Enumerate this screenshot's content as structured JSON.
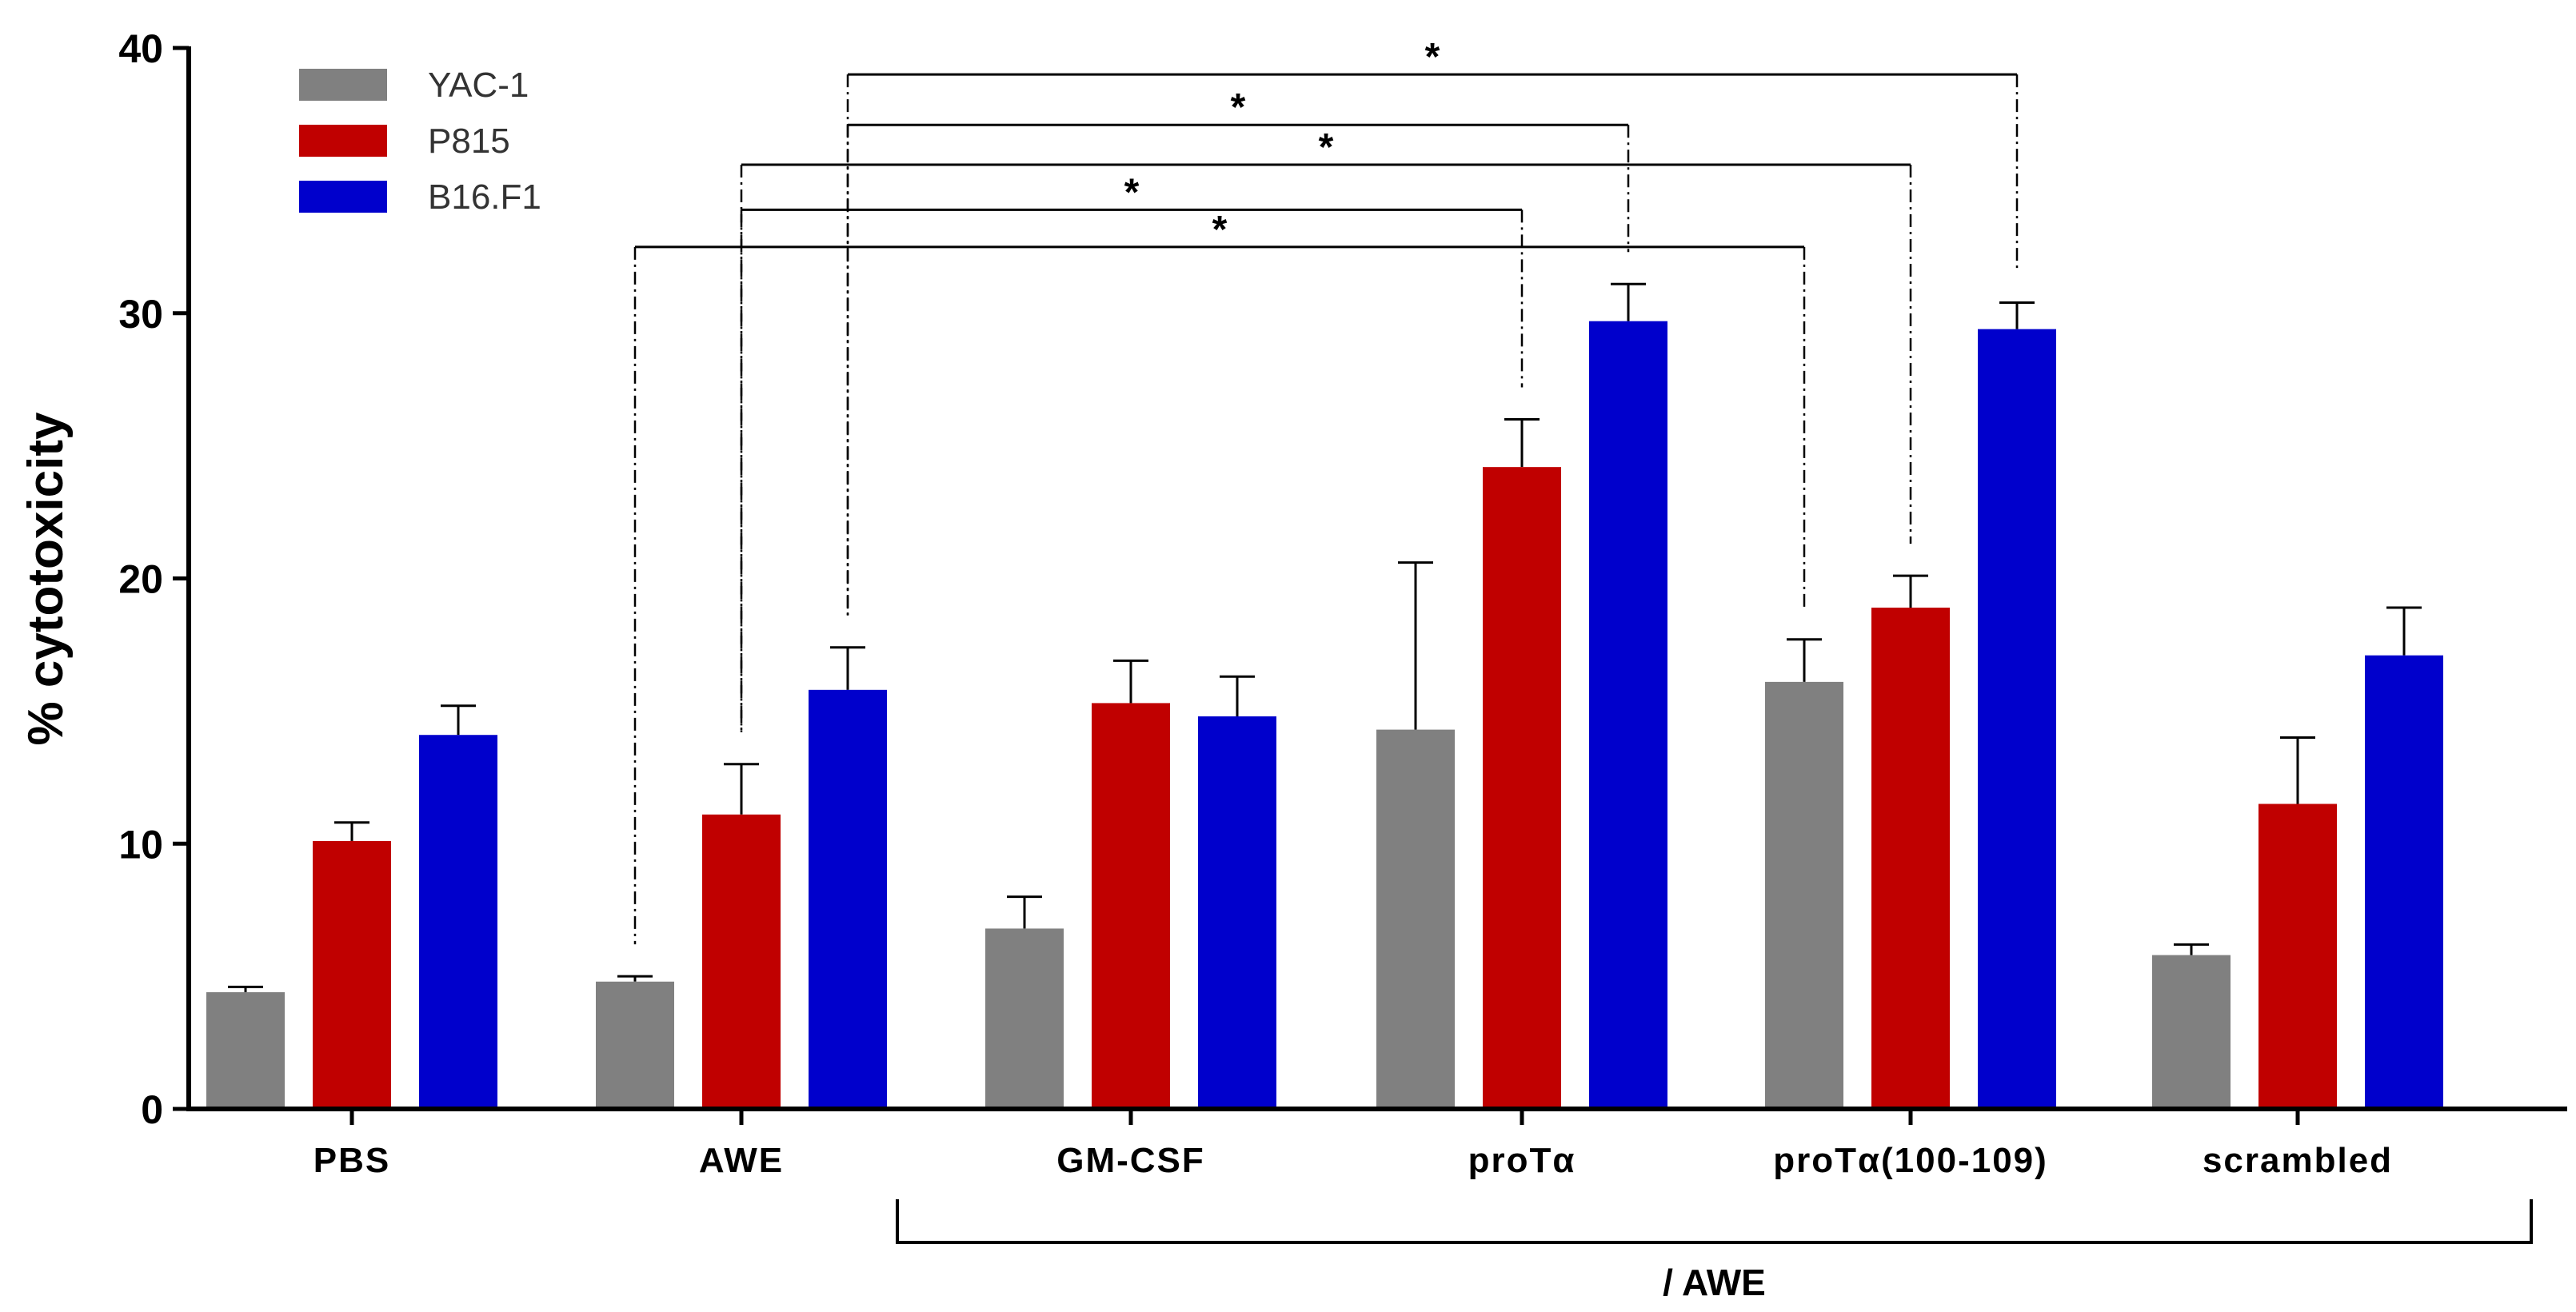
{
  "chart_data": {
    "type": "bar",
    "title": "",
    "xlabel": "",
    "ylabel": "% cytotoxicity",
    "ylim": [
      0,
      40
    ],
    "yticks": [
      "0",
      "10",
      "20",
      "30",
      "40"
    ],
    "categories": [
      {
        "id": "pbs",
        "label": "PBS"
      },
      {
        "id": "awe",
        "label": "AWE"
      },
      {
        "id": "gmcsf",
        "label": "GM-CSF"
      },
      {
        "id": "prota",
        "label": "proTα"
      },
      {
        "id": "prota100",
        "label": "proTα(100-109)"
      },
      {
        "id": "scrambled",
        "label": "scrambled"
      }
    ],
    "series": [
      {
        "name": "YAC-1",
        "color": "#808080",
        "values": [
          4.4,
          4.8,
          6.8,
          14.3,
          16.1,
          5.8
        ],
        "errors": [
          0.2,
          0.2,
          1.2,
          6.3,
          1.6,
          0.4
        ]
      },
      {
        "name": "P815",
        "color": "#c00000",
        "values": [
          10.1,
          11.1,
          15.3,
          24.2,
          18.9,
          11.5
        ],
        "errors": [
          0.7,
          1.9,
          1.6,
          1.8,
          1.2,
          2.5
        ]
      },
      {
        "name": "B16.F1",
        "color": "#0000cc",
        "values": [
          14.1,
          15.8,
          14.8,
          29.7,
          29.4,
          17.1
        ],
        "errors": [
          1.1,
          1.6,
          1.5,
          1.4,
          1.0,
          1.8
        ]
      }
    ],
    "legend_position": "top-left",
    "group_bracket": {
      "label": "/ AWE",
      "from": "gmcsf",
      "to": "scrambled"
    },
    "significance": [
      {
        "from_category": "awe",
        "from_series": "B16.F1",
        "to_category": "prota100",
        "to_series": "B16.F1",
        "level": 39,
        "mark": "*"
      },
      {
        "from_category": "awe",
        "from_series": "B16.F1",
        "to_category": "prota",
        "to_series": "B16.F1",
        "level": 37.1,
        "mark": "*"
      },
      {
        "from_category": "awe",
        "from_series": "P815",
        "to_category": "prota100",
        "to_series": "P815",
        "level": 35.6,
        "mark": "*"
      },
      {
        "from_category": "awe",
        "from_series": "P815",
        "to_category": "prota",
        "to_series": "P815",
        "level": 33.9,
        "mark": "*"
      },
      {
        "from_category": "awe",
        "from_series": "YAC-1",
        "to_category": "prota100",
        "to_series": "YAC-1",
        "level": 32.5,
        "mark": "*"
      }
    ]
  }
}
